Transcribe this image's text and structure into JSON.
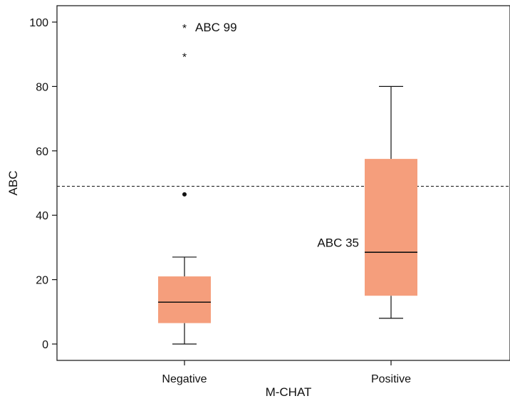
{
  "chart_data": {
    "type": "box",
    "title": "",
    "xlabel": "M-CHAT",
    "ylabel": "ABC",
    "ylim": [
      -7.5,
      105
    ],
    "yticks": [
      0,
      20,
      40,
      60,
      80,
      100
    ],
    "categories": [
      "Negative",
      "Positive"
    ],
    "box_color": "#f59e7c",
    "boxes": [
      {
        "category": "Negative",
        "whisker_low": 0,
        "q1": 6.5,
        "median": 13,
        "q3": 21,
        "whisker_high": 27,
        "outliers": [
          46.5
        ],
        "extremes": [
          89.5,
          98.5
        ]
      },
      {
        "category": "Positive",
        "whisker_low": 8,
        "q1": 15,
        "median": 28.5,
        "q3": 57.5,
        "whisker_high": 80,
        "outliers": [],
        "extremes": []
      }
    ],
    "reference_line": {
      "value": 49,
      "style": "dashed"
    },
    "annotations": [
      {
        "text": "ABC 99",
        "category": "Negative",
        "value": 98.5
      },
      {
        "text": "ABC 35",
        "category": "Positive",
        "value": 31.5
      }
    ],
    "grid": false,
    "legend": "none"
  }
}
